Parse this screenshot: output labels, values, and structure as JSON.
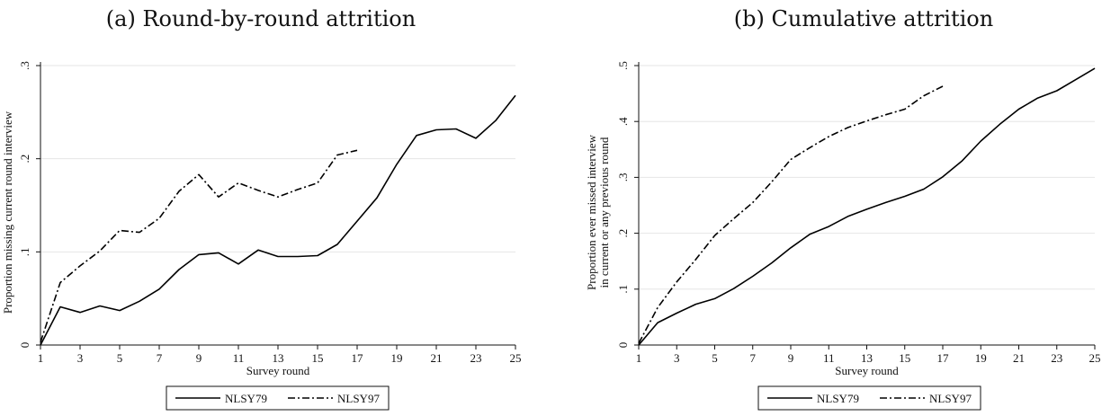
{
  "chart_data": [
    {
      "type": "line",
      "caption": "(a) Round-by-round attrition",
      "xlabel": "Survey round",
      "ylabel": "Proportion missing current round interview",
      "xlim": [
        1,
        25
      ],
      "ylim": [
        0,
        0.3
      ],
      "xticks": [
        1,
        3,
        5,
        7,
        9,
        11,
        13,
        15,
        17,
        19,
        21,
        23,
        25
      ],
      "yticks": [
        0,
        0.1,
        0.2,
        0.3
      ],
      "ytick_labels": [
        "0",
        ".1",
        ".2",
        ".3"
      ],
      "grid": true,
      "legend_position": "bottom",
      "series": [
        {
          "name": "NLSY79",
          "style": "solid",
          "x": [
            1,
            2,
            3,
            4,
            5,
            6,
            7,
            8,
            9,
            10,
            11,
            12,
            13,
            14,
            15,
            16,
            17,
            18,
            19,
            20,
            21,
            22,
            23,
            24,
            25
          ],
          "y": [
            0.0,
            0.041,
            0.035,
            0.042,
            0.037,
            0.047,
            0.06,
            0.081,
            0.097,
            0.099,
            0.087,
            0.102,
            0.095,
            0.095,
            0.096,
            0.108,
            0.133,
            0.158,
            0.194,
            0.225,
            0.231,
            0.232,
            0.222,
            0.241,
            0.268
          ]
        },
        {
          "name": "NLSY97",
          "style": "dash-dot",
          "x": [
            1,
            2,
            3,
            4,
            5,
            6,
            7,
            8,
            9,
            10,
            11,
            12,
            13,
            14,
            15,
            16,
            17
          ],
          "y": [
            0.003,
            0.067,
            0.085,
            0.101,
            0.123,
            0.121,
            0.136,
            0.165,
            0.183,
            0.159,
            0.174,
            0.166,
            0.159,
            0.167,
            0.174,
            0.204,
            0.209
          ]
        }
      ]
    },
    {
      "type": "line",
      "caption": "(b) Cumulative attrition",
      "xlabel": "Survey round",
      "ylabel_lines": [
        "Proportion ever missed interview",
        "in current or any previous round"
      ],
      "xlim": [
        1,
        25
      ],
      "ylim": [
        0,
        0.5
      ],
      "xticks": [
        1,
        3,
        5,
        7,
        9,
        11,
        13,
        15,
        17,
        19,
        21,
        23,
        25
      ],
      "yticks": [
        0,
        0.1,
        0.2,
        0.3,
        0.4,
        0.5
      ],
      "ytick_labels": [
        "0",
        ".1",
        ".2",
        ".3",
        ".4",
        ".5"
      ],
      "grid": true,
      "legend_position": "bottom",
      "series": [
        {
          "name": "NLSY79",
          "style": "solid",
          "x": [
            1,
            2,
            3,
            4,
            5,
            6,
            7,
            8,
            9,
            10,
            11,
            12,
            13,
            14,
            15,
            16,
            17,
            18,
            19,
            20,
            21,
            22,
            23,
            24,
            25
          ],
          "y": [
            0.0,
            0.04,
            0.057,
            0.073,
            0.083,
            0.101,
            0.123,
            0.147,
            0.174,
            0.198,
            0.212,
            0.23,
            0.243,
            0.255,
            0.266,
            0.279,
            0.301,
            0.329,
            0.365,
            0.395,
            0.422,
            0.442,
            0.455,
            0.475,
            0.495
          ]
        },
        {
          "name": "NLSY97",
          "style": "dash-dot",
          "x": [
            1,
            2,
            3,
            4,
            5,
            6,
            7,
            8,
            9,
            10,
            11,
            12,
            13,
            14,
            15,
            16,
            17
          ],
          "y": [
            0.003,
            0.067,
            0.113,
            0.153,
            0.196,
            0.226,
            0.255,
            0.292,
            0.332,
            0.353,
            0.373,
            0.389,
            0.401,
            0.412,
            0.422,
            0.446,
            0.463
          ]
        }
      ]
    }
  ]
}
